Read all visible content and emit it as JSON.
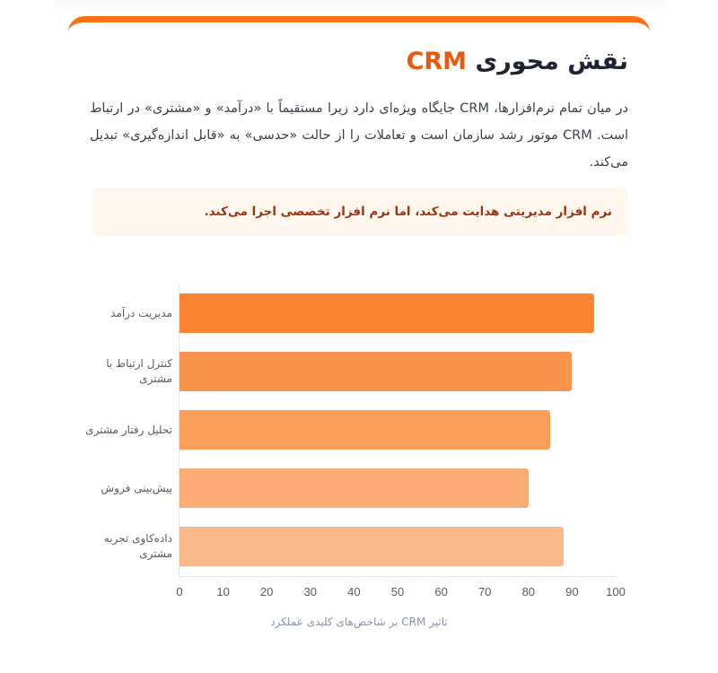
{
  "header": {
    "title_text": "نقش محوری",
    "title_accent": "CRM"
  },
  "intro": {
    "text": "در میان تمام نرم‌افزارها، CRM جایگاه ویژه‌ای دارد زیرا مستقیماً با «درآمد» و «مشتری» در ارتباط است. CRM موتور رشد سازمان است و تعاملات را از حالت «حدسی» به «قابل اندازه‌گیری» تبدیل می‌کند."
  },
  "callout": {
    "text": "نرم افزار مدیریتی هدایت می‌کند، اما نرم افزار تخصصی اجرا می‌کند."
  },
  "colors": {
    "accent": "#F97316",
    "title_accent": "#EA580C",
    "callout_bg": "#FFF7ED",
    "callout_text": "#9A3412",
    "bars": [
      "#F98431",
      "#F9924A",
      "#FA9E5C",
      "#FBAC74",
      "#FBB98A"
    ]
  },
  "chart_data": {
    "type": "bar",
    "orientation": "horizontal",
    "title": "",
    "caption": "تاثیر CRM بر شاخص‌های کلیدی عملکرد",
    "categories": [
      "مدیریت درآمد",
      "کنترل ارتباط با مشتری",
      "تحلیل رفتار مشتری",
      "پیش‌بینی فروش",
      "داده‌کاوی تجربه مشتری"
    ],
    "values": [
      95,
      90,
      85,
      80,
      88
    ],
    "xlabel": "",
    "ylabel": "",
    "xlim": [
      0,
      100
    ],
    "xticks": [
      "0",
      "10",
      "20",
      "30",
      "40",
      "50",
      "60",
      "70",
      "80",
      "90",
      "100"
    ],
    "grid": false,
    "legend": null
  }
}
